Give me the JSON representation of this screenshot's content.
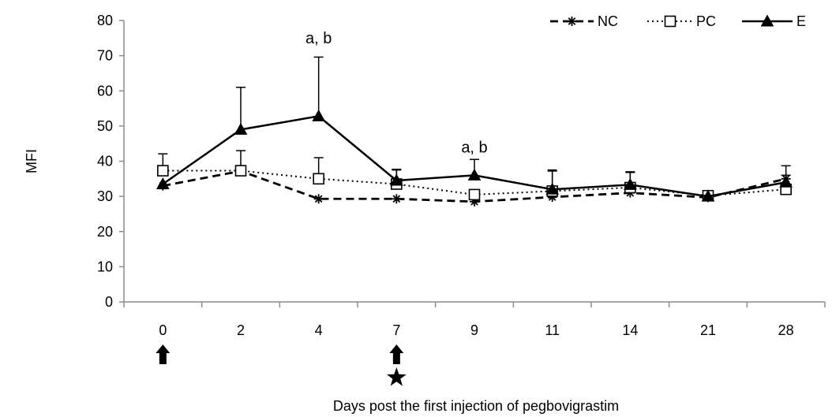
{
  "chart_data": {
    "type": "line",
    "title": "",
    "xlabel": "Days post the first injection of pegbovigrastim",
    "ylabel": "MFI",
    "ylim": [
      0,
      80
    ],
    "yticks": [
      0,
      10,
      20,
      30,
      40,
      50,
      60,
      70,
      80
    ],
    "categories": [
      "0",
      "2",
      "4",
      "7",
      "9",
      "11",
      "14",
      "21",
      "28"
    ],
    "grid": false,
    "legend_position": "top-right",
    "series": [
      {
        "name": "NC",
        "line_style": "dashed",
        "marker": "star",
        "values": [
          33,
          37.2,
          29.3,
          29.3,
          28.5,
          29.8,
          31,
          29.7,
          35
        ],
        "error_up": [
          0,
          0,
          0,
          0,
          0,
          0,
          0,
          0,
          0
        ]
      },
      {
        "name": "PC",
        "line_style": "dotted",
        "marker": "open-square",
        "values": [
          37.3,
          37.3,
          35,
          33.5,
          30.5,
          31.5,
          32.5,
          30.2,
          32
        ],
        "error_up": [
          4.8,
          5.7,
          6,
          4,
          0,
          6,
          4.5,
          0,
          4
        ]
      },
      {
        "name": "E",
        "line_style": "solid",
        "marker": "filled-triangle",
        "values": [
          33.5,
          49,
          52.8,
          34.5,
          36,
          32,
          33.3,
          30,
          34
        ],
        "error_up": [
          0,
          12,
          16.8,
          3.2,
          4.5,
          5.2,
          3.5,
          0,
          4.7
        ]
      }
    ],
    "annotations": [
      {
        "text": "a, b",
        "category_index": 2,
        "y": 73.5
      },
      {
        "text": "a, b",
        "category_index": 4,
        "y": 42.5
      }
    ],
    "markers_below_axis": [
      {
        "symbol": "arrow-up",
        "category_index": 0,
        "row": 0
      },
      {
        "symbol": "arrow-up",
        "category_index": 3,
        "row": 0
      },
      {
        "symbol": "star",
        "category_index": 3,
        "row": 1
      }
    ]
  }
}
